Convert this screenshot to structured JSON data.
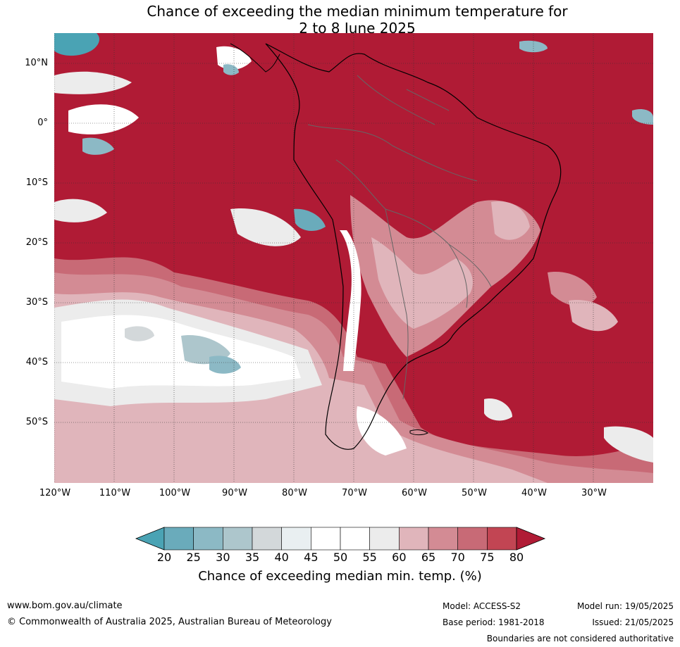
{
  "title": {
    "line1": "Chance of exceeding the median minimum temperature for",
    "line2": "2 to 8 June 2025"
  },
  "map": {
    "lat_labels": [
      "10°N",
      "0°",
      "10°S",
      "20°S",
      "30°S",
      "40°S",
      "50°S"
    ],
    "lon_labels": [
      "120°W",
      "110°W",
      "100°W",
      "90°W",
      "80°W",
      "70°W",
      "60°W",
      "50°W",
      "40°W",
      "30°W"
    ],
    "colors": {
      "background_high": "#b01b35",
      "ocean_land_fill": "#b01b35"
    }
  },
  "colorbar": {
    "ticks": [
      "20",
      "25",
      "30",
      "35",
      "40",
      "45",
      "50",
      "55",
      "60",
      "65",
      "70",
      "75",
      "80"
    ],
    "colors": [
      "#4aa3b4",
      "#6aabbb",
      "#8cb9c5",
      "#adc6cc",
      "#d3d8da",
      "#e9eff1",
      "#ffffff",
      "#ffffff",
      "#ececec",
      "#e0b5bb",
      "#d38b94",
      "#c86a76",
      "#c24553",
      "#b01b35"
    ],
    "label": "Chance of exceeding median min. temp. (%)"
  },
  "footer": {
    "website": "www.bom.gov.au/climate",
    "copyright": "© Commonwealth of Australia 2025, Australian Bureau of Meteorology",
    "model": "Model: ACCESS-S2",
    "base_period": "Base period: 1981-2018",
    "model_run": "Model run: 19/05/2025",
    "issued": "Issued: 21/05/2025",
    "disclaimer": "Boundaries are not considered authoritative"
  }
}
